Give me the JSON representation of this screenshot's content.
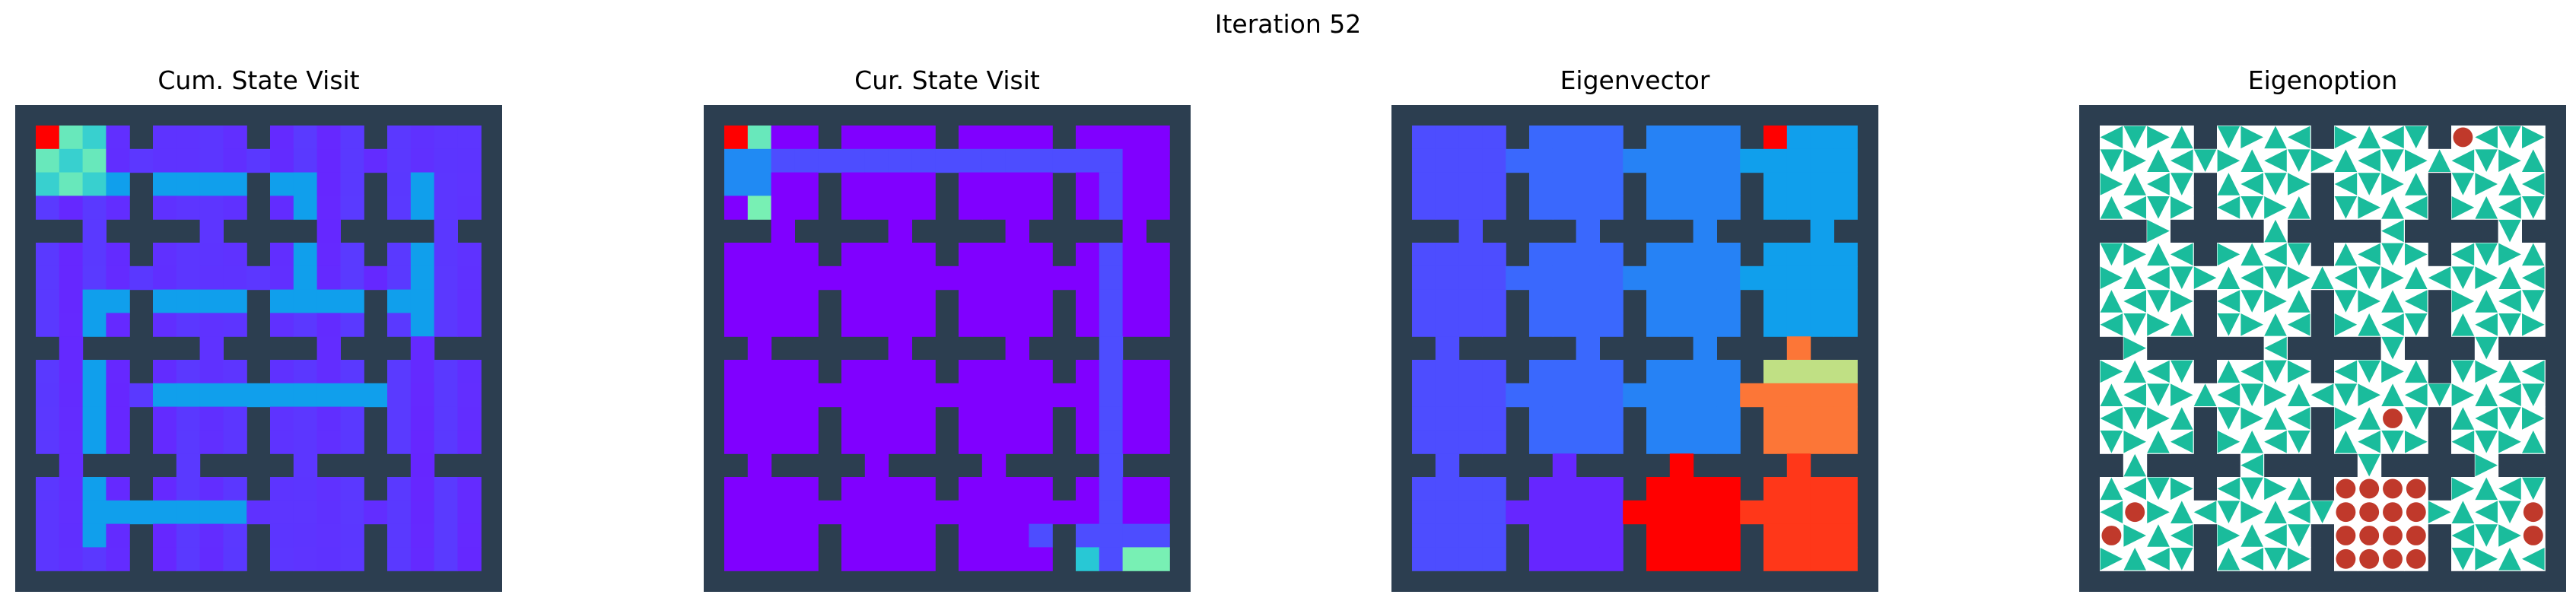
{
  "figure_title": "Iteration 52",
  "chart_data": [
    {
      "type": "heatmap",
      "title": "Cum. State Visit",
      "grid": "11x11 four-rooms style tiles (4x4 rooms, 5x5 cells each, doorways between rooms)",
      "colormap": "rainbow",
      "description_of_values": "visitation counts; start cell (top-left) highest",
      "hot_cells": [
        [
          0,
          0,
          1.0
        ],
        [
          0,
          1,
          0.45
        ],
        [
          1,
          0,
          0.45
        ],
        [
          1,
          1,
          0.42
        ]
      ],
      "trail_cells": [
        [
          1,
          2
        ],
        [
          1,
          3
        ],
        [
          1,
          4
        ],
        [
          1,
          5
        ],
        [
          1,
          6
        ],
        [
          1,
          7
        ],
        [
          1,
          8
        ],
        [
          1,
          9
        ],
        [
          1,
          10
        ],
        [
          1,
          11
        ],
        [
          1,
          12
        ],
        [
          1,
          13
        ],
        [
          1,
          14
        ],
        [
          2,
          15
        ],
        [
          3,
          15
        ],
        [
          4,
          15
        ],
        [
          5,
          15
        ],
        [
          6,
          14
        ],
        [
          6,
          13
        ],
        [
          6,
          12
        ],
        [
          6,
          11
        ],
        [
          6,
          10
        ],
        [
          6,
          9
        ],
        [
          6,
          8
        ],
        [
          6,
          7
        ],
        [
          6,
          6
        ],
        [
          6,
          5
        ],
        [
          6,
          4
        ],
        [
          6,
          3
        ],
        [
          7,
          3
        ],
        [
          8,
          3
        ],
        [
          9,
          3
        ],
        [
          10,
          3
        ],
        [
          11,
          3
        ],
        [
          12,
          3
        ],
        [
          13,
          3
        ],
        [
          14,
          3
        ],
        [
          15,
          3
        ],
        [
          16,
          3
        ],
        [
          16,
          4
        ],
        [
          16,
          5
        ],
        [
          16,
          6
        ],
        [
          16,
          7
        ]
      ]
    },
    {
      "type": "heatmap",
      "title": "Cur. State Visit",
      "colormap": "rainbow",
      "description_of_values": "current-episode visitation",
      "hot_cells": [
        [
          0,
          0,
          1.0
        ],
        [
          0,
          1,
          0.45
        ],
        [
          4,
          2,
          0.45
        ],
        [
          18,
          15,
          0.45
        ],
        [
          18,
          16,
          0.5
        ]
      ],
      "trail_cells": [
        [
          0,
          2
        ],
        [
          1,
          0
        ],
        [
          1,
          1
        ],
        [
          1,
          2
        ],
        [
          1,
          3
        ],
        [
          1,
          4
        ],
        [
          1,
          5
        ],
        [
          1,
          6
        ],
        [
          1,
          7
        ],
        [
          1,
          8
        ],
        [
          1,
          9
        ],
        [
          1,
          10
        ],
        [
          1,
          11
        ],
        [
          2,
          12
        ],
        [
          2,
          13
        ],
        [
          2,
          14
        ],
        [
          2,
          15
        ],
        [
          3,
          15
        ],
        [
          4,
          15
        ],
        [
          5,
          15
        ],
        [
          6,
          15
        ],
        [
          7,
          15
        ],
        [
          8,
          15
        ],
        [
          9,
          15
        ],
        [
          10,
          15
        ],
        [
          11,
          15
        ],
        [
          12,
          15
        ],
        [
          13,
          15
        ],
        [
          14,
          15
        ],
        [
          15,
          15
        ],
        [
          16,
          15
        ],
        [
          17,
          15
        ],
        [
          17,
          14
        ],
        [
          17,
          13
        ]
      ]
    },
    {
      "type": "heatmap",
      "title": "Eigenvector",
      "colormap": "rainbow",
      "description_of_values": "eigenvector value per state; bottom-right rooms highest"
    },
    {
      "type": "quiver",
      "title": "Eigenoption",
      "description_of_values": "policy arrows per state (teal triangles), terminal states shown as red dots"
    }
  ],
  "colors": {
    "wall": "#2c3e50",
    "arrow": "#1abc9c",
    "terminal": "#c0392b",
    "peak": "#ff0000",
    "low": "#8000ff"
  }
}
